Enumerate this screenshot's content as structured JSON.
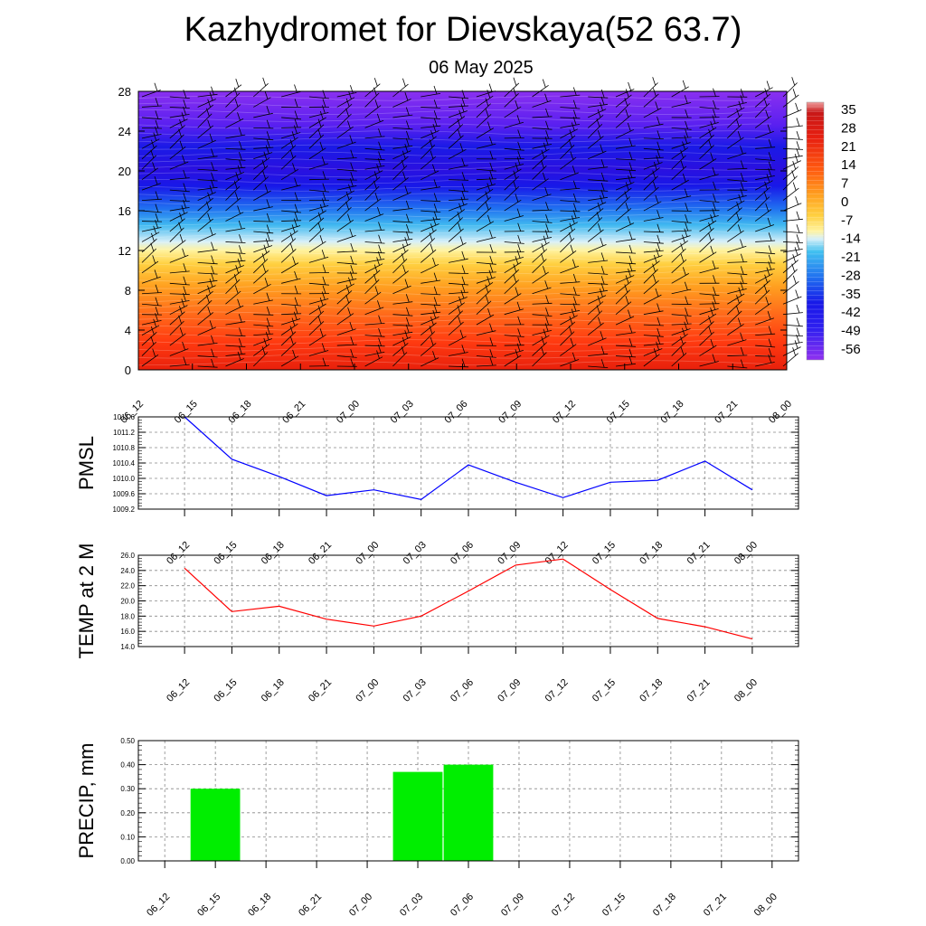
{
  "title": "Kazhydromet for Dievskaya(52 63.7)",
  "subtitle": "06 May 2025",
  "colors": {
    "pmsl_line": "#0000ff",
    "temp_line": "#ff0000",
    "precip_bar": "#00ee00",
    "grid": "#888888"
  },
  "chart_data": [
    {
      "type": "heatmap",
      "title": "",
      "x_tick_labels": [
        "06_12",
        "06_15",
        "06_18",
        "06_21",
        "07_00",
        "07_03",
        "07_06",
        "07_09",
        "07_12",
        "07_15",
        "07_18",
        "07_21",
        "08_00"
      ],
      "y_ticks": [
        0,
        4,
        8,
        12,
        16,
        20,
        24,
        28
      ],
      "ylim": [
        0,
        28
      ],
      "colorbar_labels": [
        "35",
        "28",
        "21",
        "14",
        "7",
        "0",
        "-7",
        "-14",
        "-21",
        "-28",
        "-35",
        "-42",
        "-49",
        "-56"
      ],
      "colorbar_range": [
        -60,
        38
      ],
      "has_wind_barbs": true
    },
    {
      "type": "line",
      "ylabel": "PMSL",
      "x_tick_labels": [
        "06_12",
        "06_15",
        "06_18",
        "06_21",
        "07_00",
        "07_03",
        "07_06",
        "07_09",
        "07_12",
        "07_15",
        "07_18",
        "07_21",
        "08_00"
      ],
      "y_tick_labels": [
        "1011.6",
        "1011.2",
        "1010.8",
        "1010.4",
        "1010.0",
        "1009.6",
        "1009.2"
      ],
      "ylim": [
        1009.2,
        1011.6
      ],
      "values": [
        1011.6,
        1010.5,
        1010.05,
        1009.55,
        1009.7,
        1009.45,
        1010.35,
        1009.9,
        1009.5,
        1009.9,
        1009.95,
        1010.45,
        1009.7
      ],
      "grid": true
    },
    {
      "type": "line",
      "ylabel": "TEMP at 2 M",
      "x_tick_labels": [
        "06_12",
        "06_15",
        "06_18",
        "06_21",
        "07_00",
        "07_03",
        "07_06",
        "07_09",
        "07_12",
        "07_15",
        "07_18",
        "07_21",
        "08_00"
      ],
      "y_tick_labels": [
        "26.0",
        "24.0",
        "22.0",
        "20.0",
        "18.0",
        "16.0",
        "14.0"
      ],
      "ylim": [
        14,
        26
      ],
      "values": [
        24.3,
        18.6,
        19.3,
        17.6,
        16.7,
        18.0,
        21.3,
        24.7,
        25.5,
        21.5,
        17.7,
        16.6,
        15.0
      ],
      "grid": true
    },
    {
      "type": "bar",
      "ylabel": "PRECIP, mm",
      "categories": [
        "06_12",
        "06_15",
        "06_18",
        "06_21",
        "07_00",
        "07_03",
        "07_06",
        "07_09",
        "07_12",
        "07_15",
        "07_18",
        "07_21",
        "08_00"
      ],
      "y_tick_labels": [
        "0.50",
        "0.40",
        "0.30",
        "0.20",
        "0.10",
        "0.00"
      ],
      "ylim": [
        0,
        0.5
      ],
      "values": [
        0,
        0.3,
        0,
        0,
        0,
        0.37,
        0.4,
        0,
        0,
        0,
        0,
        0,
        0
      ],
      "grid": true
    }
  ]
}
